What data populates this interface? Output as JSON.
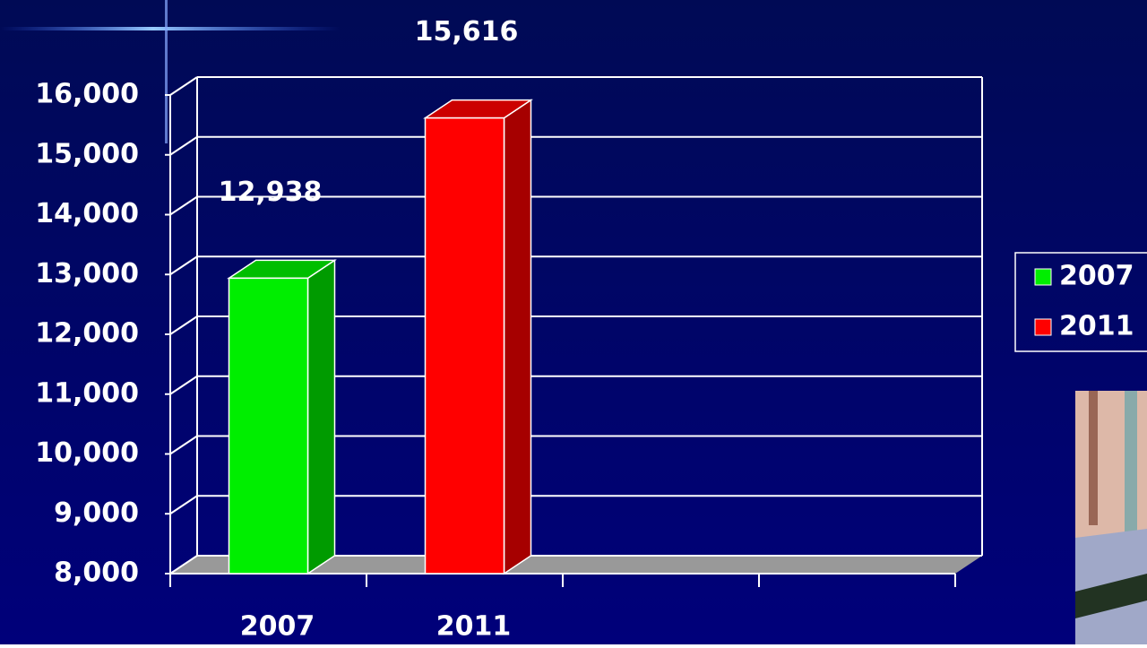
{
  "chart_data": {
    "type": "bar3d",
    "categories": [
      "2007",
      "2011",
      null,
      null
    ],
    "series": [
      {
        "name": "2007",
        "color": "#00ee00",
        "values": [
          12938,
          null,
          null,
          null
        ],
        "value_labels": [
          "12,938",
          null,
          null,
          null
        ]
      },
      {
        "name": "2011",
        "color": "#ff0000",
        "values": [
          null,
          15616,
          null,
          null
        ],
        "value_labels": [
          null,
          "15,616",
          null,
          null
        ]
      }
    ],
    "ylim": [
      8000,
      16000
    ],
    "yticks": [
      {
        "value": 8000,
        "label": "8,000"
      },
      {
        "value": 9000,
        "label": "9,000"
      },
      {
        "value": 10000,
        "label": "10,000"
      },
      {
        "value": 11000,
        "label": "11,000"
      },
      {
        "value": 12000,
        "label": "12,000"
      },
      {
        "value": 13000,
        "label": "13,000"
      },
      {
        "value": 14000,
        "label": "14,000"
      },
      {
        "value": 15000,
        "label": "15,000"
      },
      {
        "value": 16000,
        "label": "16,000"
      }
    ],
    "grid": true,
    "legend": "right"
  }
}
